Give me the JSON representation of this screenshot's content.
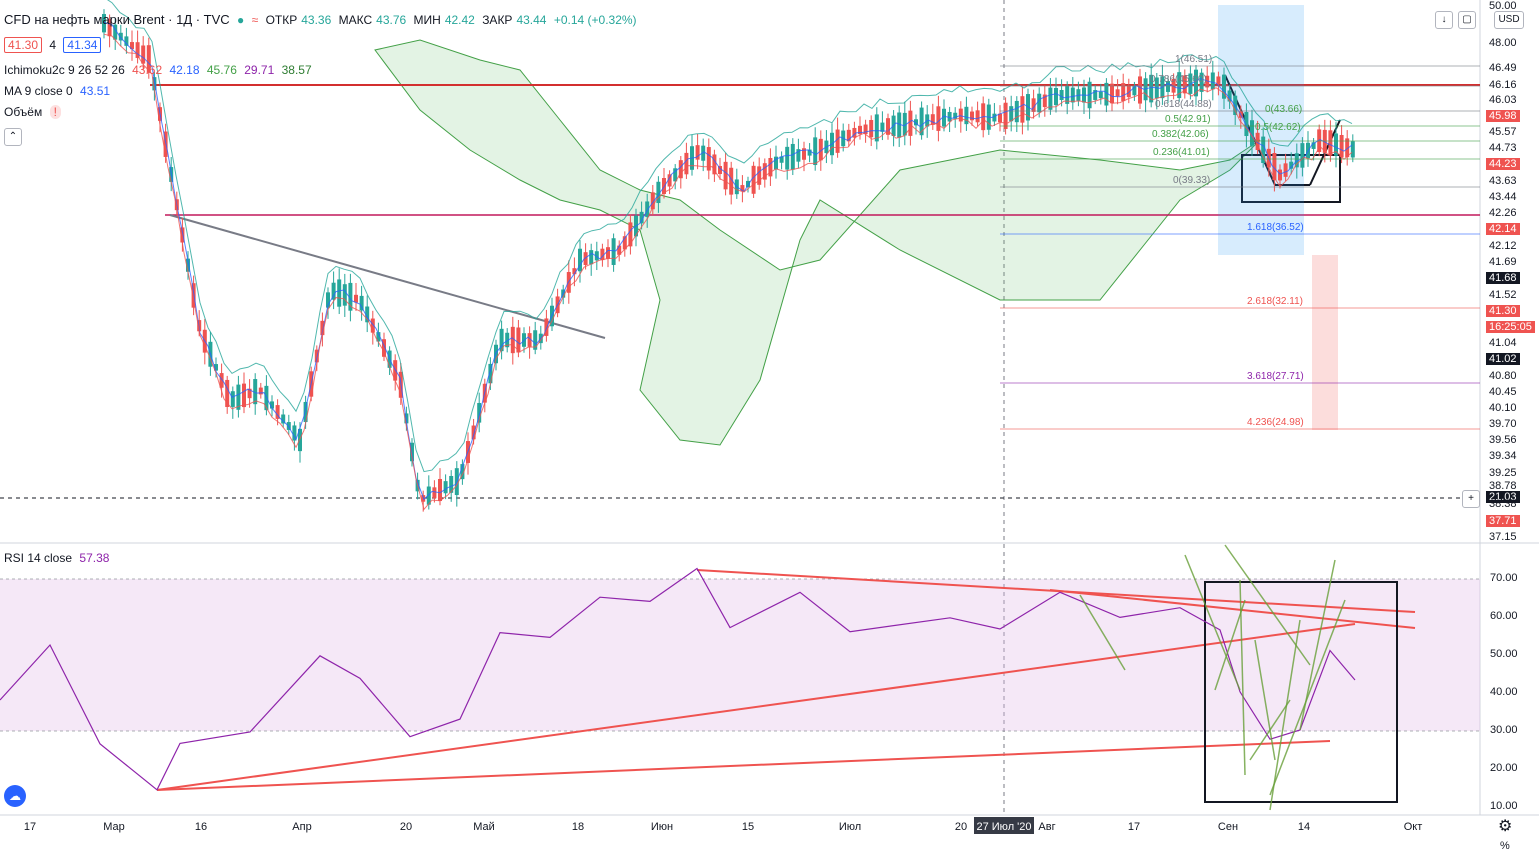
{
  "header": {
    "symbol": "CFD на нефть марки Brent · 1Д · TVC",
    "ohlc": {
      "o_label": "ОТКР",
      "o": "43.36",
      "h_label": "МАКС",
      "h": "43.76",
      "l_label": "МИН",
      "l": "42.42",
      "c_label": "ЗАКР",
      "c": "43.44",
      "change": "+0.14 (+0.32%)"
    },
    "bid": "41.30",
    "spread": "4",
    "ask": "41.34"
  },
  "indicators": {
    "ichimoku": {
      "label": "Ichimoku2c 9 26 52 26",
      "values": [
        "43.62",
        "42.18",
        "45.76",
        "29.71",
        "38.57"
      ],
      "colors": [
        "#ef5350",
        "#2962ff",
        "#43a047",
        "#8e24aa",
        "#2e7d32"
      ]
    },
    "ma": {
      "label": "MA 9 close 0",
      "value": "43.51"
    },
    "volume": {
      "label": "Объём",
      "badge": "!"
    },
    "rsi": {
      "label": "RSI 14 close",
      "value": "57.38"
    }
  },
  "toolbar": {
    "currency": "USD"
  },
  "bottom_axis": {
    "labels": [
      "17",
      "Мар",
      "16",
      "Апр",
      "20",
      "Май",
      "18",
      "Июн",
      "15",
      "Июл",
      "20",
      "27 Июл '20",
      "Авг",
      "17",
      "Сен",
      "14",
      "Окт"
    ],
    "x": [
      "2020-02-17",
      "2020-03-01",
      "2020-03-16",
      "2020-04-01",
      "2020-04-20",
      "2020-05-01",
      "2020-05-18",
      "2020-06-01",
      "2020-06-15",
      "2020-07-01",
      "2020-07-20",
      "2020-07-27",
      "2020-08-01",
      "2020-08-17",
      "2020-09-01",
      "2020-09-14",
      "2020-10-01"
    ]
  },
  "price_axis": {
    "ticks": [
      "50.00",
      "48.00",
      "46.49",
      "46.16",
      "46.03",
      "45.98",
      "45.57",
      "44.73",
      "44.23",
      "43.63",
      "43.44",
      "42.26",
      "42.14",
      "42.12",
      "41.69",
      "41.68",
      "41.52",
      "41.30",
      "16:25:05",
      "41.04",
      "41.02",
      "40.80",
      "40.45",
      "40.10",
      "39.70",
      "39.56",
      "39.34",
      "39.25",
      "38.78",
      "21.03",
      "38.38",
      "37.71",
      "37.15"
    ],
    "highlight": {
      "45.98": "#ef5350",
      "44.23": "#ef5350",
      "42.14": "#ef5350",
      "41.30": "#ef5350",
      "16:25:05": "#ef5350",
      "41.68": "#131722",
      "41.02": "#131722",
      "21.03": "#131722",
      "37.71": "#ef5350"
    }
  },
  "rsi_axis": {
    "ticks": [
      "70.00",
      "60.00",
      "50.00",
      "40.00",
      "30.00",
      "20.00",
      "10.00"
    ],
    "top_cut": "%"
  },
  "fib_retracement": {
    "levels": [
      {
        "label": "1(46.51)",
        "color": "#787b86"
      },
      {
        "label": "0.786(45.60)",
        "color": "#787b86"
      },
      {
        "label": "0.618(44.88)",
        "color": "#787b86"
      },
      {
        "label": "0.5(42.91)",
        "color": "#43a047"
      },
      {
        "label": "0.382(42.06)",
        "color": "#43a047"
      },
      {
        "label": "0.236(41.01)",
        "color": "#43a047"
      },
      {
        "label": "0(39.33)",
        "color": "#787b86"
      },
      {
        "label": "1.618(36.52)",
        "color": "#2962ff"
      },
      {
        "label": "2.618(32.11)",
        "color": "#ef5350"
      },
      {
        "label": "3.618(27.71)",
        "color": "#8e24aa"
      },
      {
        "label": "4.236(24.98)",
        "color": "#ef5350"
      }
    ],
    "small_labels": [
      "0(43.66)",
      "0.5(42.62)"
    ]
  },
  "chart_data": [
    {
      "type": "candlestick",
      "title": "CFD на нефть марки Brent · 1Д · TVC",
      "x_range": [
        "2020-02-17",
        "2020-10-01"
      ],
      "ylim": [
        37.0,
        50.0
      ],
      "last": {
        "open": 43.36,
        "high": 43.76,
        "low": 42.42,
        "close": 43.44
      },
      "overlays": [
        "Ichimoku2c 9 26 52 26",
        "MA 9 close 0"
      ],
      "grid": true
    },
    {
      "type": "line",
      "title": "RSI 14 close",
      "ylim": [
        10,
        70
      ],
      "band": [
        30,
        70
      ],
      "last": 57.38,
      "grid": true
    }
  ]
}
